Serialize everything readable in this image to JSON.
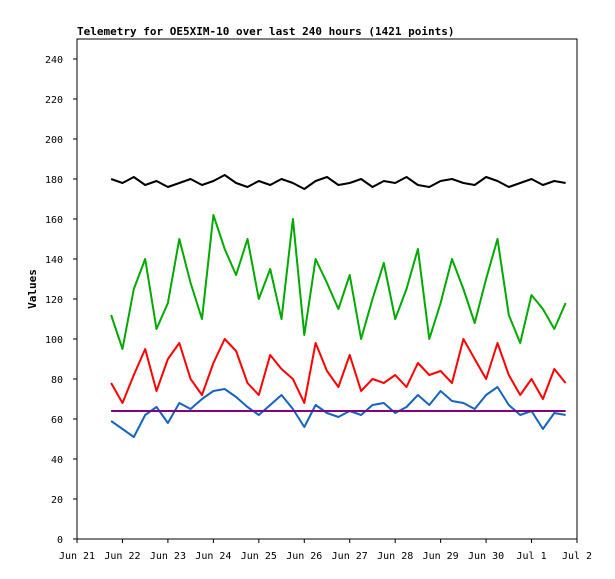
{
  "chart_data": {
    "type": "line",
    "title": "Telemetry for OE5XIM-10 over last 240 hours (1421 points)",
    "xlabel": "",
    "ylabel": "Values",
    "ylim": [
      0,
      250
    ],
    "xlim": [
      "2021-06-21 00:00",
      "2021-07-02 00:00"
    ],
    "y_ticks": [
      0,
      20,
      40,
      60,
      80,
      100,
      120,
      140,
      160,
      180,
      200,
      220,
      240
    ],
    "x_ticks": [
      {
        "label": "Jun 21",
        "date": "2021-06-21"
      },
      {
        "label": "Jun 22",
        "date": "2021-06-22"
      },
      {
        "label": "Jun 23",
        "date": "2021-06-23"
      },
      {
        "label": "Jun 24",
        "date": "2021-06-24"
      },
      {
        "label": "Jun 25",
        "date": "2021-06-25"
      },
      {
        "label": "Jun 26",
        "date": "2021-06-26"
      },
      {
        "label": "Jun 27",
        "date": "2021-06-27"
      },
      {
        "label": "Jun 28",
        "date": "2021-06-28"
      },
      {
        "label": "Jun 29",
        "date": "2021-06-29"
      },
      {
        "label": "Jun 30",
        "date": "2021-06-30"
      },
      {
        "label": "Jul 1",
        "date": "2021-07-01"
      },
      {
        "label": "Jul 2",
        "date": "2021-07-02"
      }
    ],
    "grid": false,
    "legend": "none",
    "series": [
      {
        "color": "#000000",
        "x": [
          "2021-06-21 18:00",
          "2021-06-22 00:00",
          "2021-06-22 06:00",
          "2021-06-22 12:00",
          "2021-06-22 18:00",
          "2021-06-23 00:00",
          "2021-06-23 06:00",
          "2021-06-23 12:00",
          "2021-06-23 18:00",
          "2021-06-24 00:00",
          "2021-06-24 06:00",
          "2021-06-24 12:00",
          "2021-06-24 18:00",
          "2021-06-25 00:00",
          "2021-06-25 06:00",
          "2021-06-25 12:00",
          "2021-06-25 18:00",
          "2021-06-26 00:00",
          "2021-06-26 06:00",
          "2021-06-26 12:00",
          "2021-06-26 18:00",
          "2021-06-27 00:00",
          "2021-06-27 06:00",
          "2021-06-27 12:00",
          "2021-06-27 18:00",
          "2021-06-28 00:00",
          "2021-06-28 06:00",
          "2021-06-28 12:00",
          "2021-06-28 18:00",
          "2021-06-29 00:00",
          "2021-06-29 06:00",
          "2021-06-29 12:00",
          "2021-06-29 18:00",
          "2021-06-30 00:00",
          "2021-06-30 06:00",
          "2021-06-30 12:00",
          "2021-06-30 18:00",
          "2021-07-01 00:00",
          "2021-07-01 06:00",
          "2021-07-01 12:00",
          "2021-07-01 18:00"
        ],
        "values": [
          180,
          178,
          181,
          177,
          179,
          176,
          178,
          180,
          177,
          179,
          182,
          178,
          176,
          179,
          177,
          180,
          178,
          175,
          179,
          181,
          177,
          178,
          180,
          176,
          179,
          178,
          181,
          177,
          176,
          179,
          180,
          178,
          177,
          181,
          179,
          176,
          178,
          180,
          177,
          179,
          178
        ]
      },
      {
        "color": "#00aa00",
        "x": [
          "2021-06-21 18:00",
          "2021-06-22 00:00",
          "2021-06-22 06:00",
          "2021-06-22 12:00",
          "2021-06-22 18:00",
          "2021-06-23 00:00",
          "2021-06-23 06:00",
          "2021-06-23 12:00",
          "2021-06-23 18:00",
          "2021-06-24 00:00",
          "2021-06-24 06:00",
          "2021-06-24 12:00",
          "2021-06-24 18:00",
          "2021-06-25 00:00",
          "2021-06-25 06:00",
          "2021-06-25 12:00",
          "2021-06-25 18:00",
          "2021-06-26 00:00",
          "2021-06-26 06:00",
          "2021-06-26 12:00",
          "2021-06-26 18:00",
          "2021-06-27 00:00",
          "2021-06-27 06:00",
          "2021-06-27 12:00",
          "2021-06-27 18:00",
          "2021-06-28 00:00",
          "2021-06-28 06:00",
          "2021-06-28 12:00",
          "2021-06-28 18:00",
          "2021-06-29 00:00",
          "2021-06-29 06:00",
          "2021-06-29 12:00",
          "2021-06-29 18:00",
          "2021-06-30 00:00",
          "2021-06-30 06:00",
          "2021-06-30 12:00",
          "2021-06-30 18:00",
          "2021-07-01 00:00",
          "2021-07-01 06:00",
          "2021-07-01 12:00",
          "2021-07-01 18:00"
        ],
        "values": [
          112,
          95,
          125,
          140,
          105,
          118,
          150,
          128,
          110,
          162,
          145,
          132,
          150,
          120,
          135,
          110,
          160,
          102,
          140,
          128,
          115,
          132,
          100,
          120,
          138,
          110,
          125,
          145,
          100,
          118,
          140,
          125,
          108,
          130,
          150,
          112,
          98,
          122,
          115,
          105,
          118
        ]
      },
      {
        "color": "#ff0000",
        "x": [
          "2021-06-21 18:00",
          "2021-06-22 00:00",
          "2021-06-22 06:00",
          "2021-06-22 12:00",
          "2021-06-22 18:00",
          "2021-06-23 00:00",
          "2021-06-23 06:00",
          "2021-06-23 12:00",
          "2021-06-23 18:00",
          "2021-06-24 00:00",
          "2021-06-24 06:00",
          "2021-06-24 12:00",
          "2021-06-24 18:00",
          "2021-06-25 00:00",
          "2021-06-25 06:00",
          "2021-06-25 12:00",
          "2021-06-25 18:00",
          "2021-06-26 00:00",
          "2021-06-26 06:00",
          "2021-06-26 12:00",
          "2021-06-26 18:00",
          "2021-06-27 00:00",
          "2021-06-27 06:00",
          "2021-06-27 12:00",
          "2021-06-27 18:00",
          "2021-06-28 00:00",
          "2021-06-28 06:00",
          "2021-06-28 12:00",
          "2021-06-28 18:00",
          "2021-06-29 00:00",
          "2021-06-29 06:00",
          "2021-06-29 12:00",
          "2021-06-29 18:00",
          "2021-06-30 00:00",
          "2021-06-30 06:00",
          "2021-06-30 12:00",
          "2021-06-30 18:00",
          "2021-07-01 00:00",
          "2021-07-01 06:00",
          "2021-07-01 12:00",
          "2021-07-01 18:00"
        ],
        "values": [
          78,
          68,
          82,
          95,
          74,
          90,
          98,
          80,
          72,
          88,
          100,
          94,
          78,
          72,
          92,
          85,
          80,
          68,
          98,
          84,
          76,
          92,
          74,
          80,
          78,
          82,
          76,
          88,
          82,
          84,
          78,
          100,
          90,
          80,
          98,
          82,
          72,
          80,
          70,
          85,
          78
        ]
      },
      {
        "color": "#1565c0",
        "x": [
          "2021-06-21 18:00",
          "2021-06-22 00:00",
          "2021-06-22 06:00",
          "2021-06-22 12:00",
          "2021-06-22 18:00",
          "2021-06-23 00:00",
          "2021-06-23 06:00",
          "2021-06-23 12:00",
          "2021-06-23 18:00",
          "2021-06-24 00:00",
          "2021-06-24 06:00",
          "2021-06-24 12:00",
          "2021-06-24 18:00",
          "2021-06-25 00:00",
          "2021-06-25 06:00",
          "2021-06-25 12:00",
          "2021-06-25 18:00",
          "2021-06-26 00:00",
          "2021-06-26 06:00",
          "2021-06-26 12:00",
          "2021-06-26 18:00",
          "2021-06-27 00:00",
          "2021-06-27 06:00",
          "2021-06-27 12:00",
          "2021-06-27 18:00",
          "2021-06-28 00:00",
          "2021-06-28 06:00",
          "2021-06-28 12:00",
          "2021-06-28 18:00",
          "2021-06-29 00:00",
          "2021-06-29 06:00",
          "2021-06-29 12:00",
          "2021-06-29 18:00",
          "2021-06-30 00:00",
          "2021-06-30 06:00",
          "2021-06-30 12:00",
          "2021-06-30 18:00",
          "2021-07-01 00:00",
          "2021-07-01 06:00",
          "2021-07-01 12:00",
          "2021-07-01 18:00"
        ],
        "values": [
          59,
          55,
          51,
          62,
          66,
          58,
          68,
          65,
          70,
          74,
          75,
          71,
          66,
          62,
          67,
          72,
          65,
          56,
          67,
          63,
          61,
          64,
          62,
          67,
          68,
          63,
          66,
          72,
          67,
          74,
          69,
          68,
          65,
          72,
          76,
          67,
          62,
          64,
          55,
          63,
          62
        ]
      },
      {
        "color": "#800080",
        "x": [
          "2021-06-21 18:00",
          "2021-07-01 18:00"
        ],
        "values": [
          64,
          64
        ]
      }
    ]
  }
}
